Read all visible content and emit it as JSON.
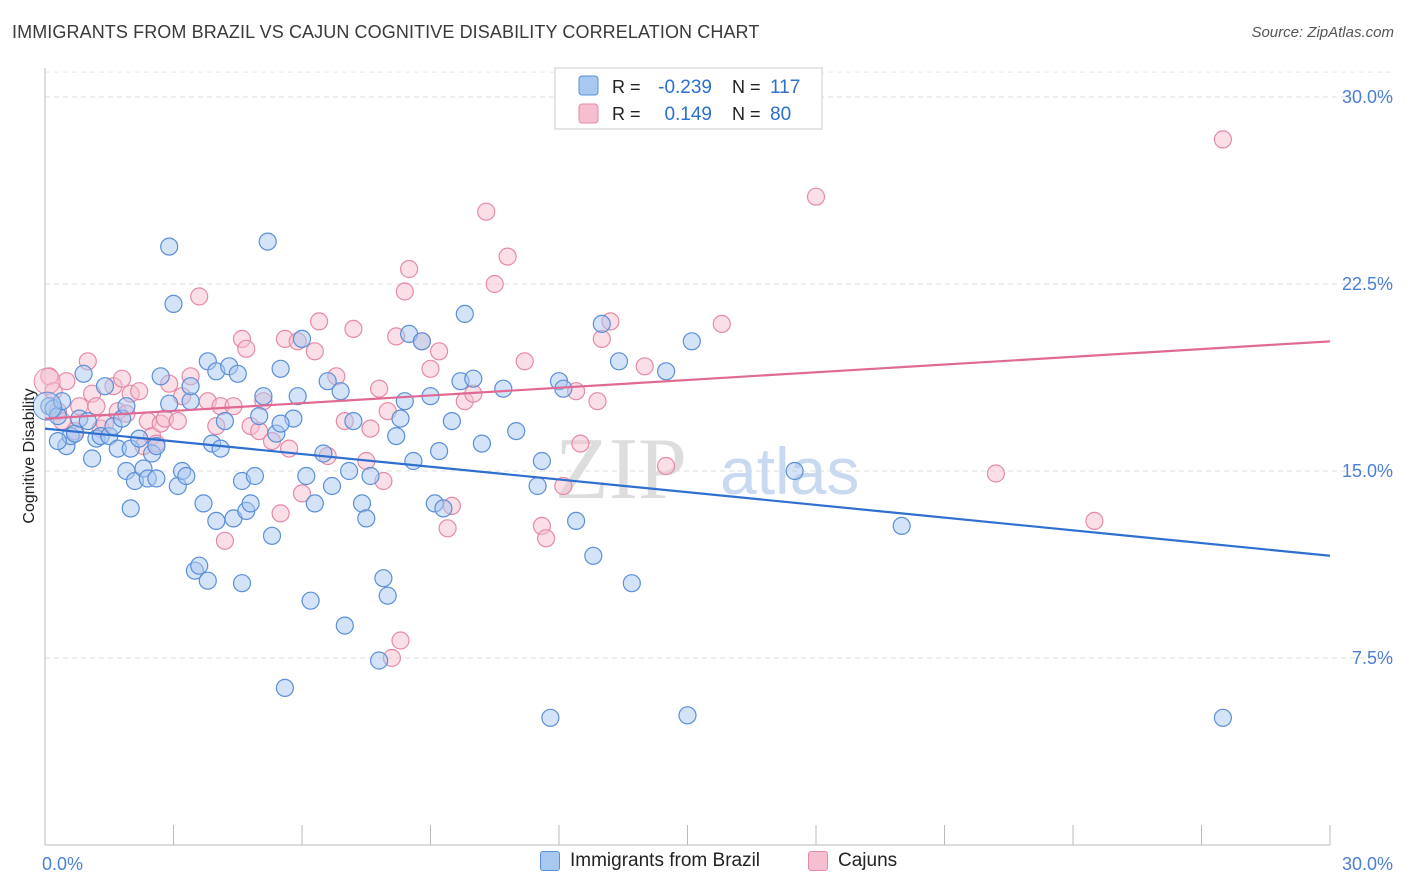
{
  "title": "IMMIGRANTS FROM BRAZIL VS CAJUN COGNITIVE DISABILITY CORRELATION CHART",
  "source": "Source: ZipAtlas.com",
  "watermark": {
    "zip": "ZIP",
    "atlas": "atlas"
  },
  "legend": {
    "rows": [
      {
        "r_label": "R =",
        "r_value": "-0.239",
        "n_label": "N =",
        "n_value": "117"
      },
      {
        "r_label": "R =",
        "r_value": "0.149",
        "n_label": "N =",
        "n_value": "80"
      }
    ]
  },
  "chart_data": {
    "type": "scatter",
    "title": "IMMIGRANTS FROM BRAZIL VS CAJUN COGNITIVE DISABILITY CORRELATION CHART",
    "xlabel": "",
    "ylabel": "Cognitive Disability",
    "xlim": [
      0,
      30
    ],
    "ylim": [
      0,
      31
    ],
    "x_tick_labels": [
      "0.0%",
      "30.0%"
    ],
    "y_ticks": [
      7.5,
      15.0,
      22.5,
      30.0
    ],
    "y_tick_labels": [
      "7.5%",
      "15.0%",
      "22.5%",
      "30.0%"
    ],
    "grid": "horizontal dashed",
    "legend_position": "top-center",
    "colors": {
      "brazil_fill": "#a9c8f0",
      "brazil_stroke": "#5b8fd8",
      "brazil_line": "#2f6fd0",
      "cajun_fill": "#f6bfd0",
      "cajun_stroke": "#e58aa8",
      "cajun_line": "#e06a94"
    },
    "series": [
      {
        "name": "Immigrants from Brazil",
        "r": -0.239,
        "n": 117,
        "trend": {
          "x": [
            0,
            30
          ],
          "y": [
            16.7,
            11.6
          ]
        },
        "points": [
          [
            0.1,
            17.6
          ],
          [
            0.2,
            17.5
          ],
          [
            0.3,
            17.2
          ],
          [
            0.4,
            17.8
          ],
          [
            0.5,
            16.0
          ],
          [
            0.6,
            16.4
          ],
          [
            0.7,
            16.5
          ],
          [
            0.8,
            17.1
          ],
          [
            0.9,
            18.9
          ],
          [
            1.0,
            17.0
          ],
          [
            1.1,
            15.5
          ],
          [
            1.2,
            16.3
          ],
          [
            1.3,
            16.4
          ],
          [
            1.4,
            18.4
          ],
          [
            1.5,
            16.4
          ],
          [
            1.6,
            16.8
          ],
          [
            1.7,
            15.9
          ],
          [
            1.8,
            17.1
          ],
          [
            1.9,
            15.0
          ],
          [
            2.0,
            15.9
          ],
          [
            2.0,
            13.5
          ],
          [
            2.1,
            14.6
          ],
          [
            2.2,
            16.3
          ],
          [
            2.3,
            15.1
          ],
          [
            2.4,
            14.7
          ],
          [
            2.5,
            15.7
          ],
          [
            2.6,
            14.7
          ],
          [
            2.6,
            16.0
          ],
          [
            2.7,
            18.8
          ],
          [
            2.9,
            17.7
          ],
          [
            2.9,
            24.0
          ],
          [
            3.0,
            21.7
          ],
          [
            3.1,
            14.4
          ],
          [
            3.2,
            15.0
          ],
          [
            3.3,
            14.8
          ],
          [
            3.4,
            17.8
          ],
          [
            3.5,
            11.0
          ],
          [
            3.6,
            11.2
          ],
          [
            3.7,
            13.7
          ],
          [
            3.8,
            10.6
          ],
          [
            3.8,
            19.4
          ],
          [
            3.9,
            16.1
          ],
          [
            4.0,
            13.0
          ],
          [
            4.0,
            19.0
          ],
          [
            4.1,
            15.9
          ],
          [
            4.2,
            17.0
          ],
          [
            4.3,
            19.2
          ],
          [
            4.4,
            13.1
          ],
          [
            4.5,
            18.9
          ],
          [
            4.6,
            10.5
          ],
          [
            4.6,
            14.6
          ],
          [
            4.7,
            13.4
          ],
          [
            4.8,
            13.7
          ],
          [
            4.9,
            14.8
          ],
          [
            5.0,
            17.2
          ],
          [
            5.1,
            18.0
          ],
          [
            5.2,
            24.2
          ],
          [
            5.3,
            12.4
          ],
          [
            5.4,
            16.5
          ],
          [
            5.5,
            19.1
          ],
          [
            5.6,
            6.3
          ],
          [
            5.8,
            17.1
          ],
          [
            5.9,
            18.0
          ],
          [
            6.0,
            20.3
          ],
          [
            6.1,
            14.8
          ],
          [
            6.2,
            9.8
          ],
          [
            6.3,
            13.7
          ],
          [
            6.5,
            15.7
          ],
          [
            6.6,
            18.6
          ],
          [
            6.7,
            14.4
          ],
          [
            6.9,
            18.2
          ],
          [
            7.0,
            8.8
          ],
          [
            7.2,
            17.0
          ],
          [
            7.4,
            13.7
          ],
          [
            7.5,
            13.1
          ],
          [
            7.6,
            14.8
          ],
          [
            7.8,
            7.4
          ],
          [
            7.9,
            10.7
          ],
          [
            8.0,
            10.0
          ],
          [
            8.2,
            16.4
          ],
          [
            8.3,
            17.1
          ],
          [
            8.4,
            17.8
          ],
          [
            8.5,
            20.5
          ],
          [
            8.6,
            15.4
          ],
          [
            8.8,
            20.2
          ],
          [
            9.0,
            18.0
          ],
          [
            9.1,
            13.7
          ],
          [
            9.3,
            13.5
          ],
          [
            9.5,
            17.0
          ],
          [
            9.7,
            18.6
          ],
          [
            9.8,
            21.3
          ],
          [
            10.0,
            18.7
          ],
          [
            10.2,
            16.1
          ],
          [
            10.7,
            18.3
          ],
          [
            11.0,
            16.6
          ],
          [
            11.5,
            14.4
          ],
          [
            11.6,
            15.4
          ],
          [
            11.8,
            5.1
          ],
          [
            12.0,
            18.6
          ],
          [
            12.1,
            18.3
          ],
          [
            12.4,
            13.0
          ],
          [
            12.8,
            11.6
          ],
          [
            13.0,
            20.9
          ],
          [
            13.4,
            19.4
          ],
          [
            13.7,
            10.5
          ],
          [
            14.5,
            19.0
          ],
          [
            15.0,
            5.2
          ],
          [
            15.1,
            20.2
          ],
          [
            17.5,
            15.0
          ],
          [
            20.0,
            12.8
          ],
          [
            27.5,
            5.1
          ],
          [
            0.3,
            16.2
          ],
          [
            1.9,
            17.6
          ],
          [
            3.4,
            18.4
          ],
          [
            5.5,
            16.9
          ],
          [
            7.1,
            15.0
          ],
          [
            9.2,
            15.8
          ]
        ]
      },
      {
        "name": "Cajuns",
        "r": 0.149,
        "n": 80,
        "trend": {
          "x": [
            0,
            30
          ],
          "y": [
            17.1,
            20.2
          ]
        },
        "points": [
          [
            0.1,
            18.8
          ],
          [
            0.2,
            18.2
          ],
          [
            0.3,
            17.4
          ],
          [
            0.4,
            17.0
          ],
          [
            0.5,
            18.6
          ],
          [
            0.7,
            16.6
          ],
          [
            0.8,
            17.6
          ],
          [
            1.0,
            19.4
          ],
          [
            1.1,
            18.1
          ],
          [
            1.2,
            17.6
          ],
          [
            1.3,
            16.7
          ],
          [
            1.4,
            16.9
          ],
          [
            1.6,
            18.4
          ],
          [
            1.7,
            17.4
          ],
          [
            1.8,
            18.7
          ],
          [
            1.9,
            17.3
          ],
          [
            2.0,
            18.1
          ],
          [
            2.2,
            18.2
          ],
          [
            2.3,
            16.0
          ],
          [
            2.4,
            17.0
          ],
          [
            2.5,
            16.4
          ],
          [
            2.6,
            16.1
          ],
          [
            2.7,
            16.9
          ],
          [
            2.8,
            17.1
          ],
          [
            2.9,
            18.5
          ],
          [
            3.1,
            17.0
          ],
          [
            3.2,
            18.0
          ],
          [
            3.4,
            18.8
          ],
          [
            3.6,
            22.0
          ],
          [
            3.8,
            17.8
          ],
          [
            4.0,
            16.8
          ],
          [
            4.1,
            17.6
          ],
          [
            4.2,
            12.2
          ],
          [
            4.4,
            17.6
          ],
          [
            4.6,
            20.3
          ],
          [
            4.7,
            19.9
          ],
          [
            4.8,
            16.8
          ],
          [
            5.0,
            16.6
          ],
          [
            5.1,
            17.8
          ],
          [
            5.3,
            16.2
          ],
          [
            5.5,
            13.3
          ],
          [
            5.6,
            20.3
          ],
          [
            5.7,
            15.9
          ],
          [
            5.9,
            20.2
          ],
          [
            6.0,
            14.1
          ],
          [
            6.3,
            19.8
          ],
          [
            6.4,
            21.0
          ],
          [
            6.6,
            15.6
          ],
          [
            6.8,
            18.8
          ],
          [
            7.0,
            17.0
          ],
          [
            7.2,
            20.7
          ],
          [
            7.5,
            15.4
          ],
          [
            7.6,
            16.7
          ],
          [
            7.8,
            18.3
          ],
          [
            7.9,
            14.6
          ],
          [
            8.0,
            17.4
          ],
          [
            8.2,
            20.4
          ],
          [
            8.3,
            8.2
          ],
          [
            8.4,
            22.2
          ],
          [
            8.5,
            23.1
          ],
          [
            8.8,
            20.2
          ],
          [
            9.0,
            19.1
          ],
          [
            9.2,
            19.8
          ],
          [
            9.4,
            12.7
          ],
          [
            9.5,
            13.6
          ],
          [
            9.8,
            17.8
          ],
          [
            10.0,
            18.1
          ],
          [
            10.3,
            25.4
          ],
          [
            10.5,
            22.5
          ],
          [
            10.8,
            23.6
          ],
          [
            11.2,
            19.4
          ],
          [
            11.6,
            12.8
          ],
          [
            11.7,
            12.3
          ],
          [
            12.1,
            14.4
          ],
          [
            12.4,
            18.2
          ],
          [
            13.0,
            20.3
          ],
          [
            13.2,
            21.0
          ],
          [
            14.0,
            19.2
          ],
          [
            18.0,
            26.0
          ],
          [
            22.2,
            14.9
          ]
        ]
      }
    ],
    "extra_cajun_points": [
      [
        8.1,
        7.5
      ],
      [
        12.5,
        16.1
      ],
      [
        12.9,
        17.8
      ],
      [
        14.5,
        15.2
      ],
      [
        15.8,
        20.9
      ],
      [
        24.5,
        13.0
      ],
      [
        27.5,
        28.3
      ]
    ]
  }
}
